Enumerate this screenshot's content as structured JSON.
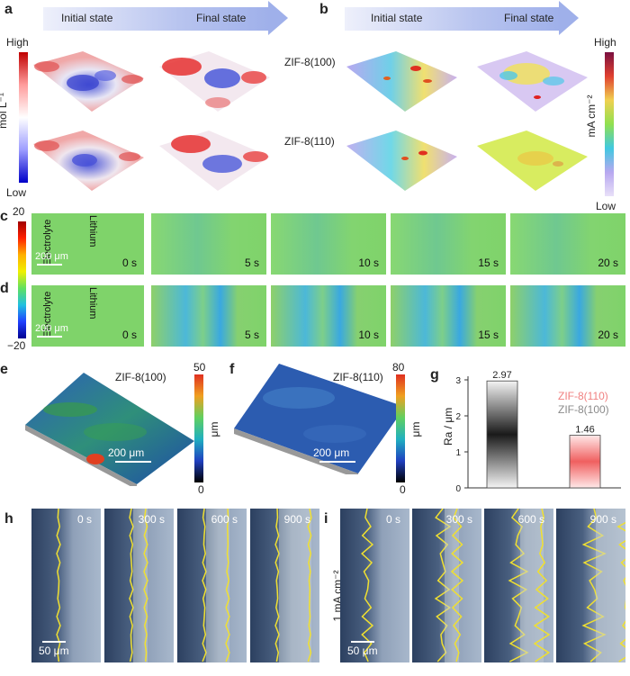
{
  "panels": {
    "a": "a",
    "b": "b",
    "c": "c",
    "d": "d",
    "e": "e",
    "f": "f",
    "g": "g",
    "h": "h",
    "i": "i"
  },
  "state_labels": {
    "initial": "Initial state",
    "final": "Final state"
  },
  "colorbar_a": {
    "high": "High",
    "low": "Low",
    "unit": "mol L⁻¹"
  },
  "colorbar_b": {
    "high": "High",
    "low": "Low",
    "unit": "mA cm⁻²"
  },
  "row_labels": {
    "row1": "ZIF-8(100)",
    "row2": "ZIF-8(110)"
  },
  "colorbar_cd": {
    "top": "20",
    "bottom": "−20"
  },
  "frames_c": [
    "0 s",
    "5 s",
    "10 s",
    "15 s",
    "20 s"
  ],
  "frames_d": [
    "0 s",
    "5 s",
    "10 s",
    "15 s",
    "20 s"
  ],
  "frame_labels": {
    "electrolyte": "Electrolyte",
    "lithium": "Lithium",
    "scale": "200 μm"
  },
  "panel_e": {
    "title": "ZIF-8(100)",
    "cb_top": "50",
    "cb_bottom": "0",
    "unit": "μm",
    "scale": "200 μm"
  },
  "panel_f": {
    "title": "ZIF-8(110)",
    "cb_top": "80",
    "cb_bottom": "0",
    "unit": "μm",
    "scale": "200 μm"
  },
  "chart_data": {
    "type": "bar",
    "categories": [
      "ZIF-8(100)",
      "ZIF-8(110)"
    ],
    "values": [
      2.97,
      1.46
    ],
    "data_labels": [
      "2.97",
      "1.46"
    ],
    "ylabel": "Ra / μm",
    "ylim": [
      0,
      3
    ],
    "yticks": [
      "0",
      "1",
      "2",
      "3"
    ],
    "legend": [
      {
        "name": "ZIF-8(110)",
        "color": "#f08080"
      },
      {
        "name": "ZIF-8(100)",
        "color": "#8a8a8a"
      }
    ],
    "legend_position": "top-right"
  },
  "frames_h": [
    "0 s",
    "300 s",
    "600 s",
    "900 s"
  ],
  "frames_i": [
    "0 s",
    "300 s",
    "600 s",
    "900 s"
  ],
  "micro_scale": "50 μm",
  "current_density": "1 mA cm⁻²"
}
